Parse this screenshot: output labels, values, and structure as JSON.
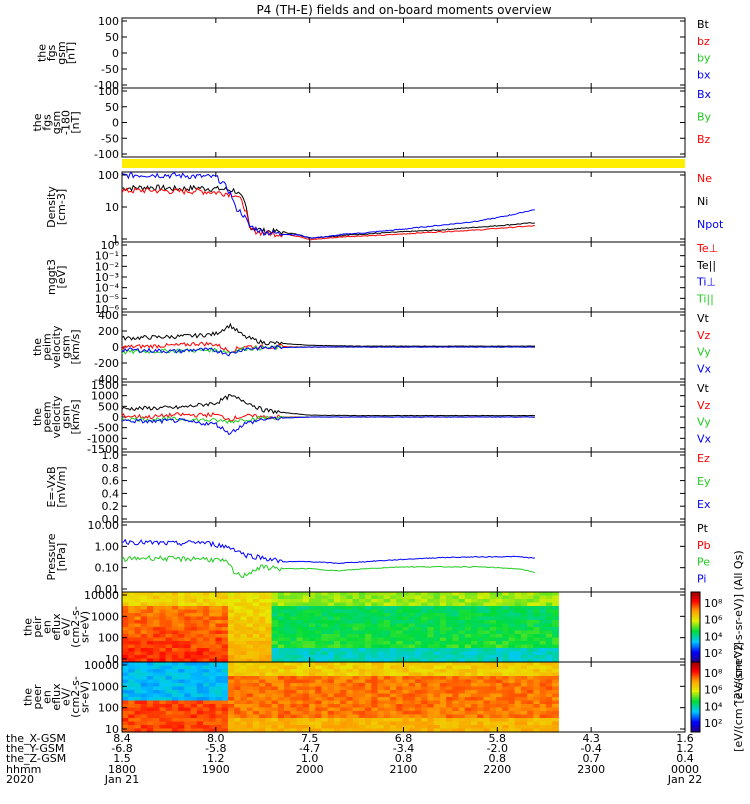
{
  "title": "P4 (TH-E) fields and on-board moments overview",
  "colors": {
    "black": "#000000",
    "red": "#ff0000",
    "green": "#22cc22",
    "blue": "#0000ff",
    "yellow": "#ffee00"
  },
  "panels": [
    {
      "id": "fgs",
      "ylabel": [
        "the",
        "fgs",
        "gsm",
        "[nT]"
      ],
      "ticks": [
        "100",
        "50",
        "0",
        "-50",
        "-100"
      ],
      "legend": [
        {
          "label": "Bt",
          "color": "#000000"
        },
        {
          "label": "bz",
          "color": "#ff0000"
        },
        {
          "label": "by",
          "color": "#22cc22"
        },
        {
          "label": "bx",
          "color": "#0000ff"
        }
      ]
    },
    {
      "id": "fgs2",
      "ylabel": [
        "the",
        "fgs",
        "gsm",
        "-180",
        "[nT]"
      ],
      "ticks": [
        "100",
        "50",
        "0",
        "-50",
        "-100"
      ],
      "legend": [
        {
          "label": "Bx",
          "color": "#0000ff"
        },
        {
          "label": "By",
          "color": "#22cc22"
        },
        {
          "label": "Bz",
          "color": "#ff0000"
        }
      ]
    },
    {
      "id": "density",
      "ylabel": [
        "Density",
        "[cm-3]"
      ],
      "ticks": [
        "100",
        "10",
        "1"
      ],
      "legend": [
        {
          "label": "Ne",
          "color": "#ff0000"
        },
        {
          "label": "Ni",
          "color": "#000000"
        },
        {
          "label": "Npot",
          "color": "#0000ff"
        }
      ]
    },
    {
      "id": "temp",
      "ylabel": [
        "mggt3",
        "[eV]"
      ],
      "ticks": [
        "10⁰",
        "10⁻¹",
        "10⁻²",
        "10⁻³",
        "10⁻⁴",
        "10⁻⁵",
        "10⁻⁶"
      ],
      "legend": [
        {
          "label": "Te⊥",
          "color": "#ff0000"
        },
        {
          "label": "Te||",
          "color": "#000000"
        },
        {
          "label": "Ti⊥",
          "color": "#0000ff"
        },
        {
          "label": "Ti||",
          "color": "#22cc22"
        }
      ]
    },
    {
      "id": "peim",
      "ylabel": [
        "the",
        "peim",
        "velocity",
        "gsm",
        "[km/s]"
      ],
      "ticks": [
        "400",
        "200",
        "0",
        "-200",
        "-400"
      ],
      "legend": [
        {
          "label": "Vt",
          "color": "#000000"
        },
        {
          "label": "Vz",
          "color": "#ff0000"
        },
        {
          "label": "Vy",
          "color": "#22cc22"
        },
        {
          "label": "Vx",
          "color": "#0000ff"
        }
      ]
    },
    {
      "id": "peem",
      "ylabel": [
        "the",
        "peem",
        "velocity",
        "gsm",
        "[km/s]"
      ],
      "ticks": [
        "1500",
        "1000",
        "500",
        "0",
        "-500",
        "-1000",
        "-1500"
      ],
      "legend": [
        {
          "label": "Vt",
          "color": "#000000"
        },
        {
          "label": "Vz",
          "color": "#ff0000"
        },
        {
          "label": "Vy",
          "color": "#22cc22"
        },
        {
          "label": "Vx",
          "color": "#0000ff"
        }
      ]
    },
    {
      "id": "efield",
      "ylabel": [
        "E=-VxB",
        "[mV/m]"
      ],
      "ticks": [
        "1.0",
        "0.8",
        "0.6",
        "0.4",
        "0.2",
        "0.0"
      ],
      "legend": [
        {
          "label": "Ez",
          "color": "#ff0000"
        },
        {
          "label": "Ey",
          "color": "#22cc22"
        },
        {
          "label": "Ex",
          "color": "#0000ff"
        }
      ]
    },
    {
      "id": "pressure",
      "ylabel": [
        "Pressure",
        "[nPa]"
      ],
      "ticks": [
        "10.00",
        "1.00",
        "0.10",
        "0.01"
      ],
      "legend": [
        {
          "label": "Pt",
          "color": "#000000"
        },
        {
          "label": "Pb",
          "color": "#ff0000"
        },
        {
          "label": "Pe",
          "color": "#22cc22"
        },
        {
          "label": "Pi",
          "color": "#0000ff"
        }
      ]
    },
    {
      "id": "peir",
      "ylabel": [
        "the",
        "peir",
        "en",
        "eflux",
        "eV/",
        "(cm2-s-",
        "sr-eV)"
      ],
      "ticks": [
        "10000",
        "1000",
        "100",
        "10"
      ],
      "legend": []
    },
    {
      "id": "peer",
      "ylabel": [
        "the",
        "peer",
        "en",
        "eflux",
        "eV/",
        "(cm2-s-",
        "sr-eV)"
      ],
      "ticks": [
        "10000",
        "1000",
        "100",
        "10"
      ],
      "legend": []
    }
  ],
  "colorbars": [
    {
      "ticks": [
        "10⁸",
        "10⁶",
        "10⁴",
        "10²"
      ],
      "label": "[eV/(cm^2-s-sr-eV)]  (All Qs)"
    },
    {
      "ticks": [
        "10⁸",
        "10⁶",
        "10⁴",
        "10²"
      ],
      "label": "[eV/(cm^2-s-sr-eV)]"
    }
  ],
  "footer": {
    "row_labels": [
      "the_X-GSM",
      "the_Y-GSM",
      "the_Z-GSM",
      "hhmm",
      "2020"
    ],
    "columns": [
      {
        "values": [
          "8.4",
          "-6.8",
          "1.5",
          "1800",
          "Jan 21"
        ]
      },
      {
        "values": [
          "8.0",
          "-5.8",
          "1.2",
          "1900",
          ""
        ]
      },
      {
        "values": [
          "7.5",
          "-4.7",
          "1.0",
          "2000",
          ""
        ]
      },
      {
        "values": [
          "6.8",
          "-3.4",
          "0.8",
          "2100",
          ""
        ]
      },
      {
        "values": [
          "5.8",
          "-2.0",
          "0.8",
          "2200",
          ""
        ]
      },
      {
        "values": [
          "4.3",
          "-0.4",
          "0.7",
          "2300",
          ""
        ]
      },
      {
        "values": [
          "1.6",
          "1.2",
          "0.4",
          "0000",
          "Jan 22"
        ]
      }
    ]
  },
  "chart_data": [
    {
      "type": "line",
      "panel": "fgs",
      "ylim": [
        -100,
        100
      ],
      "series": []
    },
    {
      "type": "line",
      "panel": "fgs2",
      "ylim": [
        -120,
        120
      ],
      "series": []
    },
    {
      "type": "line",
      "panel": "density",
      "scale": "log",
      "ylim": [
        0.5,
        200
      ],
      "x_hours": [
        18.0,
        18.3,
        18.6,
        18.8,
        19.0,
        19.1,
        19.2,
        19.35,
        19.5,
        19.7,
        19.9,
        20.0,
        20.2,
        20.4,
        20.6,
        20.8,
        21.0,
        21.2,
        21.4,
        21.6,
        21.8,
        22.0,
        22.2,
        22.4
      ],
      "series": [
        {
          "name": "Ni",
          "color": "#000000",
          "values": [
            50,
            55,
            48,
            52,
            48,
            45,
            42,
            2,
            1.3,
            1.2,
            0.9,
            0.7,
            0.8,
            0.9,
            1.0,
            1.1,
            1.2,
            1.3,
            1.4,
            1.6,
            1.8,
            2.0,
            2.3,
            2.6
          ]
        },
        {
          "name": "Ne",
          "color": "#ff0000",
          "values": [
            40,
            42,
            38,
            40,
            35,
            33,
            30,
            1.5,
            1.1,
            1.0,
            0.8,
            0.6,
            0.7,
            0.8,
            0.85,
            0.9,
            1.0,
            1.1,
            1.2,
            1.3,
            1.4,
            1.6,
            1.8,
            2.0
          ]
        },
        {
          "name": "Npot",
          "color": "#0000ff",
          "values": [
            150,
            160,
            150,
            140,
            130,
            60,
            10,
            2,
            1.2,
            1.0,
            0.9,
            0.7,
            0.8,
            1.0,
            1.1,
            1.3,
            1.5,
            1.8,
            2.1,
            2.5,
            3.0,
            4.0,
            5.5,
            8.0
          ]
        }
      ]
    },
    {
      "type": "line",
      "panel": "temp",
      "scale": "log",
      "ylim": [
        1e-06,
        1
      ],
      "series": []
    },
    {
      "type": "line",
      "panel": "peim",
      "ylim": [
        -400,
        400
      ],
      "x_hours": [
        18.0,
        18.3,
        18.6,
        18.8,
        19.0,
        19.15,
        19.3,
        19.5,
        19.7,
        20.0,
        20.5,
        21.0,
        21.5,
        22.0,
        22.4
      ],
      "series": [
        {
          "name": "Vt",
          "color": "#000000",
          "values": [
            100,
            110,
            120,
            130,
            150,
            250,
            120,
            50,
            40,
            20,
            10,
            10,
            10,
            10,
            10
          ]
        },
        {
          "name": "Vz",
          "color": "#ff0000",
          "values": [
            0,
            10,
            20,
            40,
            30,
            -50,
            10,
            0,
            5,
            0,
            0,
            0,
            0,
            0,
            0
          ]
        },
        {
          "name": "Vy",
          "color": "#22cc22",
          "values": [
            -60,
            -50,
            -40,
            -40,
            -30,
            -60,
            -20,
            -10,
            -5,
            0,
            0,
            0,
            0,
            0,
            0
          ]
        },
        {
          "name": "Vx",
          "color": "#0000ff",
          "values": [
            -30,
            -40,
            -50,
            -30,
            -40,
            -80,
            -20,
            -10,
            -5,
            0,
            0,
            0,
            0,
            0,
            0
          ]
        }
      ]
    },
    {
      "type": "line",
      "panel": "peem",
      "ylim": [
        -1500,
        1500
      ],
      "x_hours": [
        18.0,
        18.3,
        18.6,
        18.8,
        19.0,
        19.15,
        19.3,
        19.5,
        19.7,
        20.0,
        20.5,
        21.0,
        21.5,
        22.0,
        22.4
      ],
      "series": [
        {
          "name": "Vt",
          "color": "#000000",
          "values": [
            350,
            380,
            400,
            500,
            600,
            900,
            700,
            300,
            200,
            80,
            60,
            60,
            60,
            60,
            60
          ]
        },
        {
          "name": "Vz",
          "color": "#ff0000",
          "values": [
            50,
            0,
            100,
            80,
            100,
            -100,
            50,
            0,
            0,
            0,
            0,
            0,
            0,
            0,
            0
          ]
        },
        {
          "name": "Vy",
          "color": "#22cc22",
          "values": [
            -80,
            -100,
            -90,
            -120,
            -150,
            -200,
            -100,
            -40,
            -20,
            0,
            0,
            0,
            0,
            0,
            0
          ]
        },
        {
          "name": "Vx",
          "color": "#0000ff",
          "values": [
            -150,
            -200,
            -150,
            -250,
            -300,
            -700,
            -300,
            -100,
            -50,
            0,
            0,
            0,
            0,
            0,
            0
          ]
        }
      ]
    },
    {
      "type": "line",
      "panel": "efield",
      "ylim": [
        0,
        1
      ],
      "series": []
    },
    {
      "type": "line",
      "panel": "pressure",
      "scale": "log",
      "ylim": [
        0.01,
        10
      ],
      "x_hours": [
        18.0,
        18.3,
        18.6,
        18.8,
        19.0,
        19.1,
        19.2,
        19.3,
        19.5,
        19.7,
        20.0,
        20.3,
        20.6,
        21.0,
        21.4,
        21.8,
        22.2,
        22.4
      ],
      "series": [
        {
          "name": "Pi",
          "color": "#0000ff",
          "values": [
            1.5,
            1.3,
            1.2,
            1.4,
            1.1,
            0.9,
            0.7,
            0.4,
            0.3,
            0.2,
            0.2,
            0.17,
            0.2,
            0.25,
            0.3,
            0.32,
            0.33,
            0.28
          ]
        },
        {
          "name": "Pe",
          "color": "#22cc22",
          "values": [
            0.25,
            0.3,
            0.26,
            0.28,
            0.24,
            0.2,
            0.06,
            0.05,
            0.12,
            0.1,
            0.1,
            0.08,
            0.1,
            0.12,
            0.12,
            0.12,
            0.1,
            0.07
          ]
        }
      ]
    },
    {
      "type": "heatmap",
      "panel": "peir",
      "ylim": [
        5,
        30000
      ]
    },
    {
      "type": "heatmap",
      "panel": "peer",
      "ylim": [
        5,
        30000
      ]
    }
  ]
}
